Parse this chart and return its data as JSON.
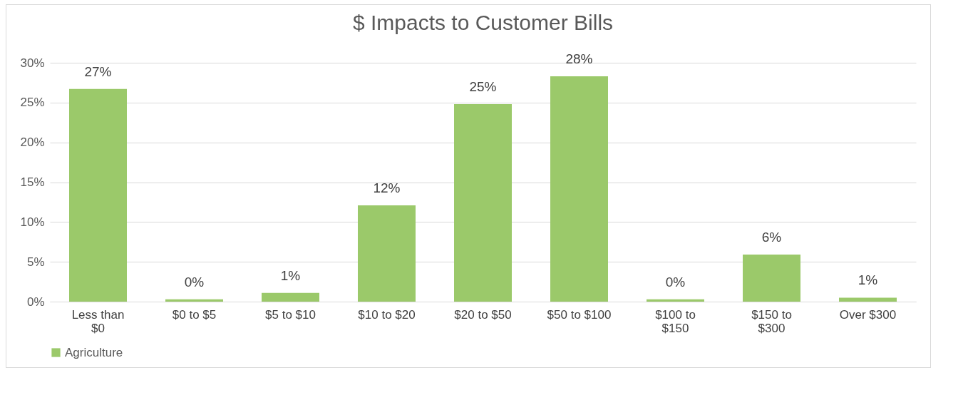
{
  "chart_data": {
    "type": "bar",
    "title": "$ Impacts to Customer Bills",
    "categories": [
      "Less than $0",
      "$0 to $5",
      "$5 to $10",
      "$10 to $20",
      "$20 to $50",
      "$50 to $100",
      "$100 to $150",
      "$150 to $300",
      "Over $300"
    ],
    "series": [
      {
        "name": "Agriculture",
        "color": "#9bc96a",
        "values": [
          26.7,
          0.3,
          1.1,
          12.1,
          24.8,
          28.3,
          0.3,
          5.9,
          0.5
        ],
        "value_labels": [
          "27%",
          "0%",
          "1%",
          "12%",
          "25%",
          "28%",
          "0%",
          "6%",
          "1%"
        ]
      }
    ],
    "ylim": [
      0,
      30
    ],
    "yticks": [
      {
        "value": 0,
        "label": "0%"
      },
      {
        "value": 5,
        "label": "5%"
      },
      {
        "value": 10,
        "label": "10%"
      },
      {
        "value": 15,
        "label": "15%"
      },
      {
        "value": 20,
        "label": "20%"
      },
      {
        "value": 25,
        "label": "25%"
      },
      {
        "value": 30,
        "label": "30%"
      }
    ],
    "grid": "y",
    "legend": "bottom"
  }
}
